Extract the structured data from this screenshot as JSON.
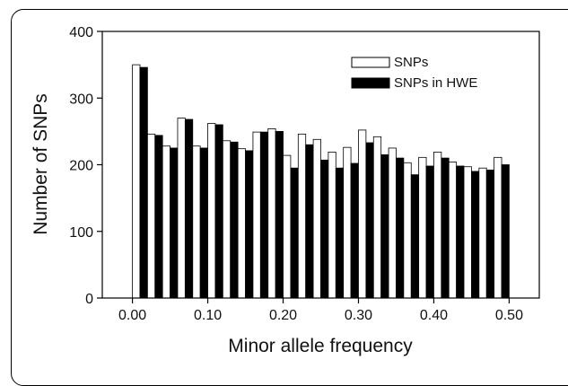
{
  "chart_data": {
    "type": "bar",
    "title": "",
    "xlabel": "Minor allele frequency",
    "ylabel": "Number of SNPs",
    "xlim": [
      -0.04,
      0.54
    ],
    "ylim": [
      0,
      400
    ],
    "x_ticks": [
      "0.00",
      "0.10",
      "0.20",
      "0.30",
      "0.40",
      "0.50"
    ],
    "x_tick_values": [
      0.0,
      0.1,
      0.2,
      0.3,
      0.4,
      0.5
    ],
    "y_ticks": [
      "0",
      "100",
      "200",
      "300",
      "400"
    ],
    "y_tick_values": [
      0,
      100,
      200,
      300,
      400
    ],
    "bin_width": 0.02,
    "bin_starts": [
      0.0,
      0.02,
      0.04,
      0.06,
      0.08,
      0.1,
      0.12,
      0.14,
      0.16,
      0.18,
      0.2,
      0.22,
      0.24,
      0.26,
      0.28,
      0.3,
      0.32,
      0.34,
      0.36,
      0.38,
      0.4,
      0.42,
      0.44,
      0.46,
      0.48
    ],
    "legend_position": "top-right",
    "grid": false,
    "series": [
      {
        "name": "SNPs",
        "color": "#ffffff",
        "stroke": "#000000",
        "values": [
          350,
          246,
          228,
          270,
          228,
          262,
          236,
          224,
          249,
          254,
          214,
          246,
          238,
          219,
          226,
          252,
          242,
          225,
          203,
          211,
          219,
          204,
          197,
          195,
          211
        ]
      },
      {
        "name": "SNPs in HWE",
        "color": "#000000",
        "stroke": "#000000",
        "values": [
          346,
          244,
          225,
          268,
          225,
          260,
          234,
          221,
          249,
          250,
          195,
          230,
          207,
          195,
          202,
          233,
          215,
          210,
          185,
          198,
          210,
          198,
          190,
          192,
          200
        ]
      }
    ]
  }
}
